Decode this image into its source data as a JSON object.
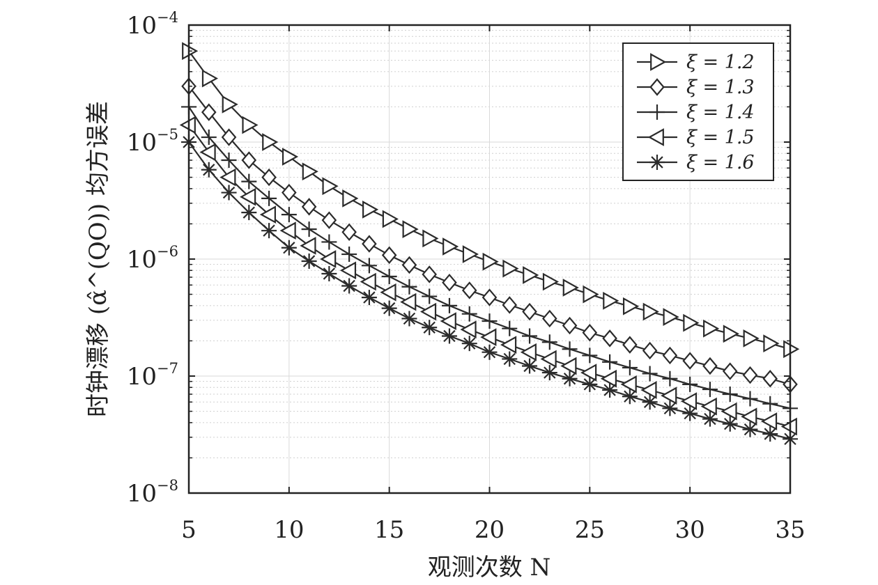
{
  "chart_data": {
    "type": "line",
    "xlabel": "观测次数 N",
    "ylabel": "时钟漂移 (α̂^(QO)) 均方误差",
    "y_scale": "log",
    "xlim": [
      5,
      35
    ],
    "ylim": [
      1e-08,
      0.0001
    ],
    "x_ticks": [
      5,
      10,
      15,
      20,
      25,
      30,
      35
    ],
    "y_ticks": [
      {
        "value": 1e-08,
        "base": "10",
        "exp": "−8"
      },
      {
        "value": 1e-07,
        "base": "10",
        "exp": "−7"
      },
      {
        "value": 1e-06,
        "base": "10",
        "exp": "−6"
      },
      {
        "value": 1e-05,
        "base": "10",
        "exp": "−5"
      },
      {
        "value": 0.0001,
        "base": "10",
        "exp": "−4"
      }
    ],
    "grid": true,
    "legend_position": "top-right",
    "x": [
      5,
      6,
      7,
      8,
      9,
      10,
      11,
      12,
      13,
      14,
      15,
      16,
      17,
      18,
      19,
      20,
      21,
      22,
      23,
      24,
      25,
      26,
      27,
      28,
      29,
      30,
      31,
      32,
      33,
      34,
      35
    ],
    "series": [
      {
        "name": "ξ = 1.2",
        "marker": "triangle-right",
        "color": "#2b2b2b",
        "values": [
          6e-05,
          3.5e-05,
          2.1e-05,
          1.4e-05,
          1e-05,
          7.5e-06,
          5.6e-06,
          4.2e-06,
          3.3e-06,
          2.65e-06,
          2.2e-06,
          1.8e-06,
          1.5e-06,
          1.28e-06,
          1.1e-06,
          9.5e-07,
          8.3e-07,
          7.3e-07,
          6.4e-07,
          5.7e-07,
          5e-07,
          4.4e-07,
          3.95e-07,
          3.55e-07,
          3.2e-07,
          2.85e-07,
          2.55e-07,
          2.3e-07,
          2.1e-07,
          1.9e-07,
          1.7e-07
        ]
      },
      {
        "name": "ξ = 1.3",
        "marker": "diamond",
        "color": "#2b2b2b",
        "values": [
          3e-05,
          1.8e-05,
          1.1e-05,
          7e-06,
          5e-06,
          3.7e-06,
          2.8e-06,
          2.15e-06,
          1.7e-06,
          1.35e-06,
          1.08e-06,
          8.9e-07,
          7.4e-07,
          6.3e-07,
          5.4e-07,
          4.7e-07,
          4.05e-07,
          3.55e-07,
          3.1e-07,
          2.7e-07,
          2.35e-07,
          2.1e-07,
          1.85e-07,
          1.65e-07,
          1.5e-07,
          1.35e-07,
          1.22e-07,
          1.1e-07,
          1.02e-07,
          9.5e-08,
          8.5e-08
        ]
      },
      {
        "name": "ξ = 1.4",
        "marker": "plus",
        "color": "#2b2b2b",
        "values": [
          2e-05,
          1.1e-05,
          7e-06,
          4.6e-06,
          3.3e-06,
          2.4e-06,
          1.8e-06,
          1.4e-06,
          1.1e-06,
          8.8e-07,
          7.1e-07,
          5.8e-07,
          4.8e-07,
          4e-07,
          3.4e-07,
          2.95e-07,
          2.55e-07,
          2.2e-07,
          1.95e-07,
          1.7e-07,
          1.5e-07,
          1.32e-07,
          1.18e-07,
          1.05e-07,
          9.5e-08,
          8.5e-08,
          7.7e-08,
          7e-08,
          6.4e-08,
          5.8e-08,
          5.3e-08
        ]
      },
      {
        "name": "ξ = 1.5",
        "marker": "triangle-left",
        "color": "#2b2b2b",
        "values": [
          1.4e-05,
          8.2e-06,
          5e-06,
          3.4e-06,
          2.4e-06,
          1.75e-06,
          1.3e-06,
          1e-06,
          8e-07,
          6.4e-07,
          5.2e-07,
          4.3e-07,
          3.55e-07,
          2.95e-07,
          2.5e-07,
          2.15e-07,
          1.85e-07,
          1.6e-07,
          1.4e-07,
          1.22e-07,
          1.07e-07,
          9.5e-08,
          8.5e-08,
          7.6e-08,
          6.8e-08,
          6.1e-08,
          5.5e-08,
          5e-08,
          4.5e-08,
          4.1e-08,
          3.7e-08
        ]
      },
      {
        "name": "ξ = 1.6",
        "marker": "asterisk",
        "color": "#2b2b2b",
        "values": [
          1e-05,
          5.8e-06,
          3.7e-06,
          2.5e-06,
          1.75e-06,
          1.25e-06,
          9.6e-07,
          7.5e-07,
          5.9e-07,
          4.7e-07,
          3.8e-07,
          3.1e-07,
          2.6e-07,
          2.2e-07,
          1.9e-07,
          1.6e-07,
          1.4e-07,
          1.22e-07,
          1.07e-07,
          9.5e-08,
          8.5e-08,
          7.6e-08,
          6.7e-08,
          6e-08,
          5.3e-08,
          4.8e-08,
          4.3e-08,
          3.9e-08,
          3.5e-08,
          3.2e-08,
          2.9e-08
        ]
      }
    ]
  }
}
